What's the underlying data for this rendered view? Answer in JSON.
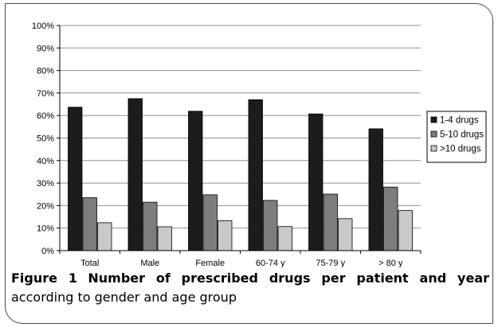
{
  "chart_data": {
    "type": "bar",
    "categories": [
      "Total",
      "Male",
      "Female",
      "60-74 y",
      "75-79 y",
      "> 80 y"
    ],
    "series": [
      {
        "name": "1-4 drugs",
        "color": "#1c1c1c",
        "values": [
          63.7,
          67.5,
          61.9,
          67.0,
          60.7,
          54.1
        ]
      },
      {
        "name": "5-10 drugs",
        "color": "#7d7d7d",
        "values": [
          23.5,
          21.5,
          24.8,
          22.3,
          25.1,
          28.2
        ]
      },
      {
        "name": ">10 drugs",
        "color": "#c9c9c9",
        "values": [
          12.4,
          10.6,
          13.3,
          10.7,
          14.2,
          17.8
        ]
      }
    ],
    "yticks": [
      "0%",
      "10%",
      "20%",
      "30%",
      "40%",
      "50%",
      "60%",
      "70%",
      "80%",
      "90%",
      "100%"
    ],
    "ylim": [
      0,
      100
    ],
    "grid": true,
    "legend": "right"
  },
  "caption": {
    "label": "Figure 1",
    "title": "Number of prescribed drugs per patient and year",
    "rest": "according to gender and age group"
  }
}
